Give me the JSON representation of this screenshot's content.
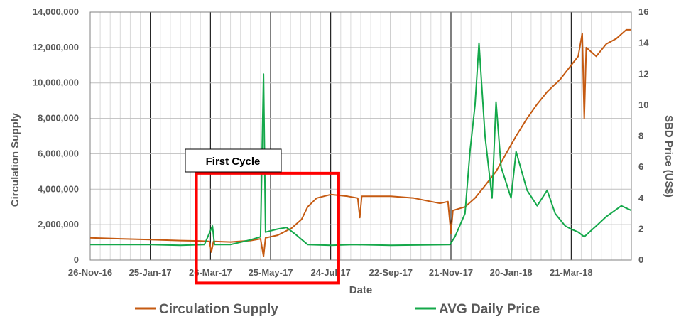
{
  "chart_data": {
    "type": "line",
    "xlabel": "Date",
    "ylabel_left": "Circulation Supply",
    "ylabel_right": "SBD Price (US$)",
    "x_ticks": [
      "26-Nov-16",
      "25-Jan-17",
      "26-Mar-17",
      "25-May-17",
      "24-Jul-17",
      "22-Sep-17",
      "21-Nov-17",
      "20-Jan-18",
      "21-Mar-18"
    ],
    "x_range": [
      "2016-11-26",
      "2018-05-20"
    ],
    "y_left": {
      "range": [
        0,
        14000000
      ],
      "ticks": [
        "0",
        "2,000,000",
        "4,000,000",
        "6,000,000",
        "8,000,000",
        "10,000,000",
        "12,000,000",
        "14,000,000"
      ]
    },
    "y_right": {
      "range": [
        0,
        16
      ],
      "ticks": [
        "0",
        "2",
        "4",
        "6",
        "8",
        "10",
        "12",
        "14",
        "16"
      ]
    },
    "grid": true,
    "legend_position": "bottom",
    "series": [
      {
        "name": "Circulation Supply",
        "axis": "left",
        "color": "#c55a11",
        "points": [
          [
            "2016-11-26",
            1250000
          ],
          [
            "2016-12-26",
            1200000
          ],
          [
            "2017-01-25",
            1150000
          ],
          [
            "2017-02-24",
            1100000
          ],
          [
            "2017-03-15",
            1080000
          ],
          [
            "2017-03-25",
            1050000
          ],
          [
            "2017-03-27",
            450000
          ],
          [
            "2017-03-29",
            1050000
          ],
          [
            "2017-04-15",
            1020000
          ],
          [
            "2017-05-05",
            1100000
          ],
          [
            "2017-05-15",
            1200000
          ],
          [
            "2017-05-18",
            200000
          ],
          [
            "2017-05-20",
            1250000
          ],
          [
            "2017-06-01",
            1400000
          ],
          [
            "2017-06-15",
            1800000
          ],
          [
            "2017-06-25",
            2300000
          ],
          [
            "2017-07-01",
            3000000
          ],
          [
            "2017-07-10",
            3500000
          ],
          [
            "2017-07-24",
            3700000
          ],
          [
            "2017-08-10",
            3600000
          ],
          [
            "2017-08-20",
            3500000
          ],
          [
            "2017-08-22",
            2400000
          ],
          [
            "2017-08-24",
            3600000
          ],
          [
            "2017-09-22",
            3600000
          ],
          [
            "2017-10-15",
            3500000
          ],
          [
            "2017-11-01",
            3300000
          ],
          [
            "2017-11-10",
            3200000
          ],
          [
            "2017-11-18",
            3300000
          ],
          [
            "2017-11-21",
            1500000
          ],
          [
            "2017-11-23",
            2800000
          ],
          [
            "2017-12-05",
            3000000
          ],
          [
            "2017-12-15",
            3500000
          ],
          [
            "2017-12-25",
            4200000
          ],
          [
            "2018-01-05",
            5000000
          ],
          [
            "2018-01-15",
            6000000
          ],
          [
            "2018-01-25",
            7000000
          ],
          [
            "2018-02-05",
            8000000
          ],
          [
            "2018-02-15",
            8800000
          ],
          [
            "2018-02-25",
            9500000
          ],
          [
            "2018-03-10",
            10200000
          ],
          [
            "2018-03-21",
            11000000
          ],
          [
            "2018-03-28",
            11500000
          ],
          [
            "2018-04-01",
            12800000
          ],
          [
            "2018-04-03",
            8000000
          ],
          [
            "2018-04-05",
            12000000
          ],
          [
            "2018-04-15",
            11500000
          ],
          [
            "2018-04-25",
            12200000
          ],
          [
            "2018-05-05",
            12500000
          ],
          [
            "2018-05-15",
            13000000
          ],
          [
            "2018-05-20",
            13000000
          ]
        ]
      },
      {
        "name": "AVG Daily Price",
        "axis": "right",
        "color": "#14a84a",
        "points": [
          [
            "2016-11-26",
            1.0
          ],
          [
            "2016-12-26",
            1.0
          ],
          [
            "2017-01-25",
            1.0
          ],
          [
            "2017-02-24",
            0.95
          ],
          [
            "2017-03-20",
            1.0
          ],
          [
            "2017-03-28",
            2.2
          ],
          [
            "2017-03-30",
            1.0
          ],
          [
            "2017-04-15",
            1.0
          ],
          [
            "2017-05-05",
            1.3
          ],
          [
            "2017-05-15",
            1.5
          ],
          [
            "2017-05-18",
            12.0
          ],
          [
            "2017-05-20",
            1.8
          ],
          [
            "2017-06-01",
            2.0
          ],
          [
            "2017-06-10",
            2.1
          ],
          [
            "2017-06-20",
            1.6
          ],
          [
            "2017-07-01",
            1.0
          ],
          [
            "2017-07-24",
            0.95
          ],
          [
            "2017-08-15",
            1.0
          ],
          [
            "2017-09-22",
            0.95
          ],
          [
            "2017-11-20",
            1.0
          ],
          [
            "2017-11-25",
            1.5
          ],
          [
            "2017-12-05",
            3.0
          ],
          [
            "2017-12-10",
            7.0
          ],
          [
            "2017-12-15",
            10.0
          ],
          [
            "2017-12-19",
            14.0
          ],
          [
            "2017-12-25",
            8.0
          ],
          [
            "2018-01-01",
            4.0
          ],
          [
            "2018-01-05",
            10.2
          ],
          [
            "2018-01-10",
            6.0
          ],
          [
            "2018-01-20",
            4.0
          ],
          [
            "2018-01-25",
            7.0
          ],
          [
            "2018-02-05",
            4.5
          ],
          [
            "2018-02-15",
            3.5
          ],
          [
            "2018-02-25",
            4.5
          ],
          [
            "2018-03-05",
            3.0
          ],
          [
            "2018-03-15",
            2.2
          ],
          [
            "2018-03-21",
            2.0
          ],
          [
            "2018-03-28",
            1.8
          ],
          [
            "2018-04-03",
            1.5
          ],
          [
            "2018-04-15",
            2.2
          ],
          [
            "2018-04-25",
            2.8
          ],
          [
            "2018-05-10",
            3.5
          ],
          [
            "2018-05-20",
            3.2
          ]
        ]
      }
    ],
    "annotation": {
      "label": "First Cycle",
      "x_range": [
        "2017-03-12",
        "2017-08-01"
      ],
      "y_range_left": [
        -1300000,
        4900000
      ],
      "color": "#ff0000"
    }
  }
}
